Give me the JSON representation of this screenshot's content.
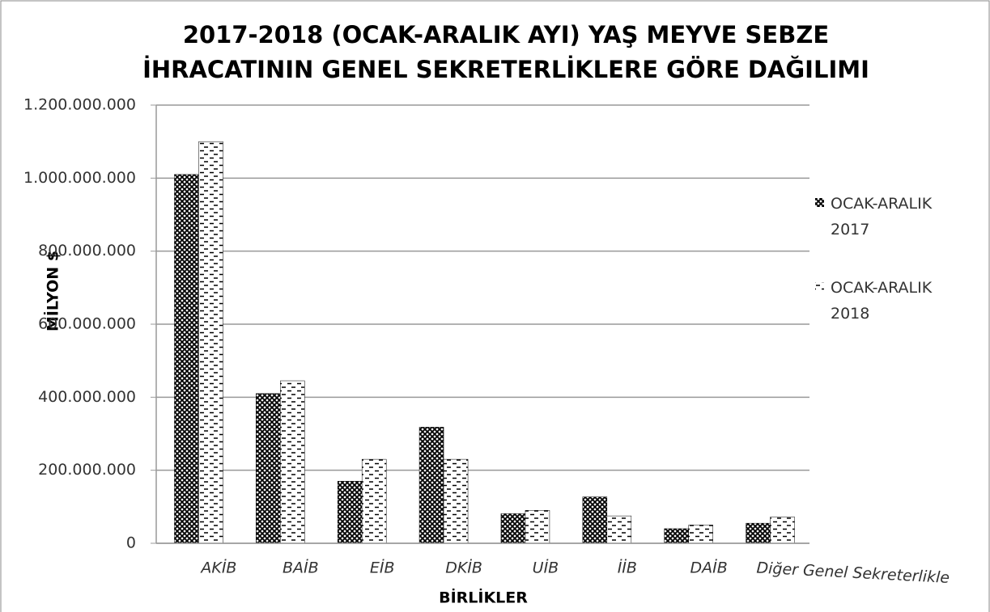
{
  "chart_data": {
    "type": "bar",
    "title": [
      "2017-2018 (OCAK-ARALIK AYI) YAŞ MEYVE SEBZE",
      "İHRACATININ GENEL SEKRETERLİKLERE GÖRE DAĞILIMI"
    ],
    "y_label": "MİLYON $",
    "x_label": "BİRLİKLER",
    "categories": [
      "AKİB",
      "BAİB",
      "EİB",
      "DKİB",
      "UİB",
      "İİB",
      "DAİB",
      "Diğer Genel Sekreterlikle"
    ],
    "series": [
      {
        "name": "OCAK-ARALIK 2017",
        "color": "#000000",
        "pattern": "crosshatch",
        "values": [
          1010000000,
          410000000,
          170000000,
          318000000,
          81000000,
          127000000,
          40000000,
          55000000
        ]
      },
      {
        "name": "OCAK-ARALIK 2018",
        "color": "#000000",
        "pattern": "dashes",
        "values": [
          1100000000,
          445000000,
          230000000,
          230000000,
          90000000,
          75000000,
          50000000,
          72000000
        ]
      }
    ],
    "ylim": [
      0,
      1200000000
    ],
    "yticks": [
      0,
      {
        "value": 200000000,
        "label": "200.000.000"
      },
      {
        "value": 400000000,
        "label": "400.000.000"
      },
      {
        "value": 600000000,
        "label": "600.000.000"
      },
      {
        "value": 800000000,
        "label": "800.000.000"
      },
      {
        "value": 1000000000,
        "label": "1.000.000.000"
      },
      {
        "value": 1200000000,
        "label": "1.200.000.000"
      }
    ],
    "grid": true,
    "legend": "right"
  }
}
